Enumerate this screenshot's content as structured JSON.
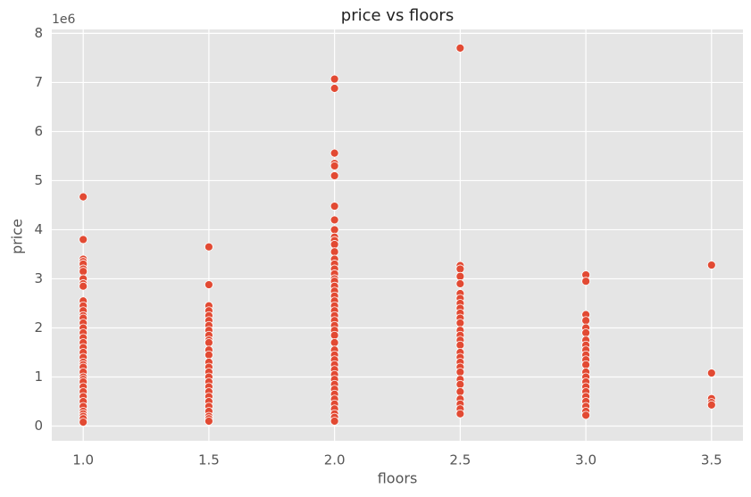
{
  "chart_data": {
    "type": "scatter",
    "title": "price vs floors",
    "x_label": "floors",
    "y_label": "price",
    "y_offset_text": "1e6",
    "color": "#e24a33",
    "grid": true,
    "xlim": [
      0.875,
      3.625
    ],
    "xticks": [
      {
        "value": 1,
        "label": "1.0"
      },
      1.5,
      {
        "value": 2,
        "label": "2.0"
      },
      2.5,
      {
        "value": 3,
        "label": "3.0"
      },
      3.5
    ],
    "ylim": [
      -0.3,
      8.08
    ],
    "yticks": [
      0,
      1,
      2,
      3,
      4,
      5,
      6,
      7,
      8
    ],
    "x": [
      1,
      1,
      1,
      1,
      1,
      1,
      1,
      1,
      1,
      1,
      1,
      1,
      1,
      1,
      1,
      1,
      1,
      1,
      1,
      1,
      1,
      1,
      1,
      1,
      1,
      1,
      1,
      1,
      1,
      1,
      1,
      1,
      1,
      1,
      1,
      1,
      1,
      1,
      1,
      1,
      1.5,
      1.5,
      1.5,
      1.5,
      1.5,
      1.5,
      1.5,
      1.5,
      1.5,
      1.5,
      1.5,
      1.5,
      1.5,
      1.5,
      1.5,
      1.5,
      1.5,
      1.5,
      1.5,
      1.5,
      1.5,
      1.5,
      1.5,
      1.5,
      1.5,
      1.5,
      1.5,
      2,
      2,
      2,
      2,
      2,
      2,
      2,
      2,
      2,
      2,
      2,
      2,
      2,
      2,
      2,
      2,
      2,
      2,
      2,
      2,
      2,
      2,
      2,
      2,
      2,
      2,
      2,
      2,
      2,
      2,
      2,
      2,
      2,
      2,
      2,
      2,
      2,
      2,
      2,
      2,
      2,
      2,
      2,
      2,
      2,
      2,
      2,
      2.5,
      2.5,
      2.5,
      2.5,
      2.5,
      2.5,
      2.5,
      2.5,
      2.5,
      2.5,
      2.5,
      2.5,
      2.5,
      2.5,
      2.5,
      2.5,
      2.5,
      2.5,
      2.5,
      2.5,
      2.5,
      2.5,
      2.5,
      2.5,
      2.5,
      2.5,
      2.5,
      2.5,
      3,
      3,
      3,
      3,
      3,
      3,
      3,
      3,
      3,
      3,
      3,
      3,
      3,
      3,
      3,
      3,
      3,
      3,
      3,
      3,
      3,
      3,
      3.5,
      3.5,
      3.5,
      3.5,
      3.5
    ],
    "values": [
      4.67,
      3.8,
      3.4,
      3.35,
      3.3,
      3.2,
      3.15,
      3.0,
      2.9,
      2.85,
      2.55,
      2.45,
      2.35,
      2.25,
      2.2,
      2.1,
      2.0,
      1.9,
      1.8,
      1.7,
      1.6,
      1.5,
      1.4,
      1.3,
      1.25,
      1.2,
      1.1,
      1.0,
      0.95,
      0.9,
      0.8,
      0.7,
      0.6,
      0.5,
      0.4,
      0.3,
      0.25,
      0.2,
      0.15,
      0.08,
      3.65,
      2.88,
      2.45,
      2.35,
      2.25,
      2.15,
      2.05,
      1.95,
      1.85,
      1.75,
      1.7,
      1.55,
      1.45,
      1.3,
      1.2,
      1.1,
      1.0,
      0.9,
      0.8,
      0.7,
      0.6,
      0.5,
      0.4,
      0.3,
      0.2,
      0.15,
      0.1,
      7.07,
      6.88,
      5.56,
      5.35,
      5.3,
      5.1,
      4.48,
      4.2,
      4.0,
      3.85,
      3.78,
      3.7,
      3.55,
      3.4,
      3.3,
      3.2,
      3.1,
      3.0,
      2.95,
      2.85,
      2.75,
      2.65,
      2.55,
      2.45,
      2.35,
      2.25,
      2.15,
      2.05,
      1.95,
      1.85,
      1.7,
      1.55,
      1.45,
      1.35,
      1.25,
      1.15,
      1.05,
      0.95,
      0.85,
      0.75,
      0.65,
      0.55,
      0.45,
      0.35,
      0.25,
      0.18,
      0.1,
      7.7,
      3.27,
      3.2,
      3.05,
      2.9,
      2.7,
      2.6,
      2.5,
      2.4,
      2.3,
      2.2,
      2.1,
      1.95,
      1.85,
      1.75,
      1.65,
      1.5,
      1.4,
      1.3,
      1.2,
      1.1,
      0.95,
      0.85,
      0.7,
      0.55,
      0.45,
      0.35,
      0.25,
      3.08,
      2.95,
      2.27,
      2.15,
      2.0,
      1.9,
      1.75,
      1.65,
      1.55,
      1.45,
      1.35,
      1.25,
      1.1,
      1.0,
      0.9,
      0.8,
      0.7,
      0.6,
      0.5,
      0.4,
      0.3,
      0.22,
      3.28,
      1.08,
      0.56,
      0.48,
      0.43
    ]
  }
}
